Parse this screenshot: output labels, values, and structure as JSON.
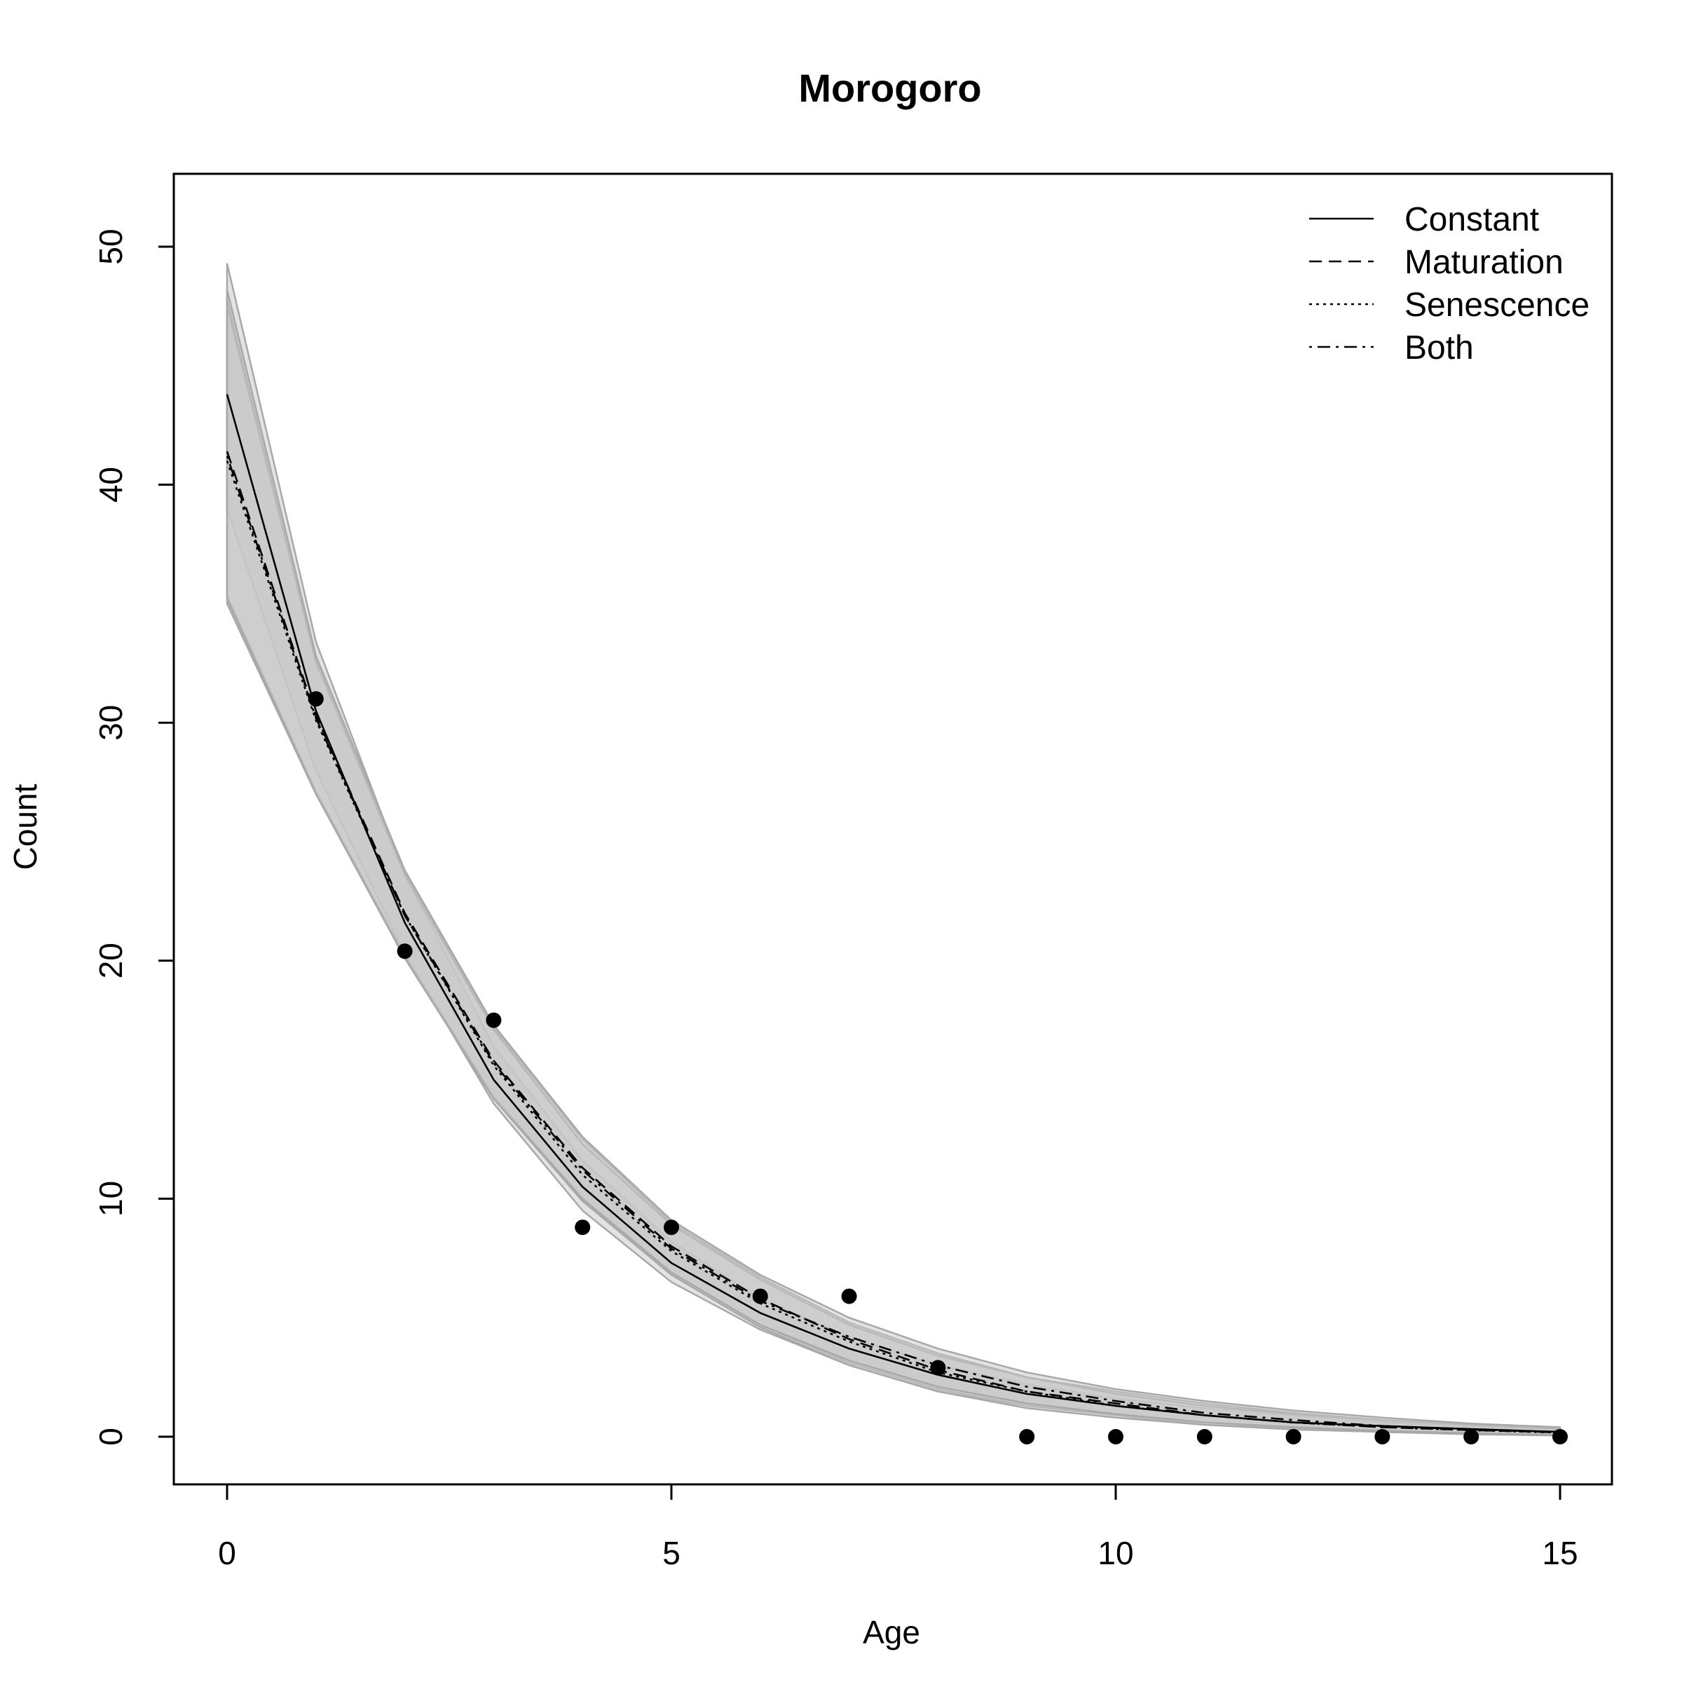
{
  "chart_data": {
    "type": "line",
    "title": "Morogoro",
    "xlabel": "Age",
    "ylabel": "Count",
    "xlim": [
      0,
      15
    ],
    "ylim": [
      0,
      50
    ],
    "x_ticks": [
      0,
      5,
      10,
      15
    ],
    "y_ticks": [
      0,
      10,
      20,
      30,
      40,
      50
    ],
    "x": [
      0,
      1,
      2,
      3,
      4,
      5,
      6,
      7,
      8,
      9,
      10,
      11,
      12,
      13,
      14,
      15
    ],
    "observed": [
      31,
      31,
      20.4,
      17.5,
      8.8,
      8.8,
      5.9,
      5.9,
      2.9,
      0,
      0,
      0,
      0,
      0,
      0,
      0
    ],
    "observed_x": [
      1,
      2,
      3,
      4,
      5,
      6,
      7,
      8,
      9,
      10,
      11,
      12,
      13,
      14,
      15
    ],
    "observed_y": [
      31,
      20.4,
      17.5,
      8.8,
      8.8,
      5.9,
      5.9,
      2.9,
      0,
      0,
      0,
      0,
      0,
      0,
      0
    ],
    "series": [
      {
        "name": "Constant",
        "dash": "solid",
        "values": [
          43.8,
          30.5,
          21.6,
          15.0,
          10.5,
          7.3,
          5.2,
          3.7,
          2.6,
          1.8,
          1.3,
          0.9,
          0.6,
          0.45,
          0.32,
          0.2
        ],
        "band_lower": [
          39.0,
          28.0,
          20.3,
          14.0,
          9.5,
          6.5,
          4.5,
          3.0,
          1.9,
          1.3,
          0.9,
          0.6,
          0.4,
          0.25,
          0.15,
          0.08
        ],
        "band_upper": [
          49.3,
          33.4,
          23.6,
          16.4,
          11.6,
          8.2,
          5.8,
          4.2,
          3.0,
          2.2,
          1.6,
          1.2,
          0.9,
          0.6,
          0.45,
          0.3
        ]
      },
      {
        "name": "Maturation",
        "dash": "dashed",
        "values": [
          41.4,
          30.3,
          22.0,
          15.8,
          11.3,
          8.0,
          5.8,
          4.1,
          2.8,
          1.9,
          1.4,
          0.9,
          0.6,
          0.4,
          0.28,
          0.18
        ],
        "band_lower": [
          35.0,
          27.0,
          20.2,
          14.3,
          10.0,
          6.9,
          4.7,
          3.1,
          2.0,
          1.3,
          0.9,
          0.5,
          0.35,
          0.2,
          0.12,
          0.06
        ],
        "band_upper": [
          47.8,
          32.5,
          23.7,
          17.2,
          12.5,
          9.0,
          6.7,
          4.8,
          3.5,
          2.5,
          1.9,
          1.4,
          1.0,
          0.7,
          0.5,
          0.35
        ]
      },
      {
        "name": "Senescence",
        "dash": "dotted",
        "values": [
          41.0,
          30.1,
          21.9,
          15.6,
          11.0,
          7.8,
          5.6,
          4.0,
          2.7,
          1.9,
          1.3,
          0.9,
          0.6,
          0.4,
          0.27,
          0.17
        ],
        "band_lower": [
          35.3,
          27.1,
          20.2,
          14.2,
          9.9,
          6.8,
          4.6,
          3.0,
          1.9,
          1.2,
          0.8,
          0.5,
          0.3,
          0.2,
          0.1,
          0.05
        ],
        "band_upper": [
          47.5,
          32.6,
          23.6,
          17.1,
          12.3,
          8.9,
          6.6,
          4.7,
          3.4,
          2.5,
          1.8,
          1.3,
          0.95,
          0.7,
          0.5,
          0.33
        ]
      },
      {
        "name": "Both",
        "dash": "dotdash",
        "values": [
          41.2,
          30.2,
          21.9,
          15.7,
          11.2,
          7.9,
          5.7,
          4.2,
          3.0,
          2.1,
          1.5,
          1.0,
          0.7,
          0.45,
          0.3,
          0.2
        ],
        "band_lower": [
          35.2,
          27.0,
          20.1,
          14.2,
          10.0,
          6.9,
          4.7,
          3.2,
          2.1,
          1.4,
          0.95,
          0.6,
          0.4,
          0.25,
          0.15,
          0.07
        ],
        "band_upper": [
          48.2,
          32.8,
          23.8,
          17.3,
          12.6,
          9.1,
          6.8,
          5.0,
          3.7,
          2.7,
          2.0,
          1.5,
          1.1,
          0.8,
          0.55,
          0.4
        ]
      }
    ],
    "legend": {
      "position": "top-right",
      "entries": [
        "Constant",
        "Maturation",
        "Senescence",
        "Both"
      ]
    },
    "grid": false,
    "colors": {
      "line": "#000000",
      "band_fill": "#c8c8c8",
      "band_edge": "#a8a8a8",
      "point": "#000000"
    }
  }
}
